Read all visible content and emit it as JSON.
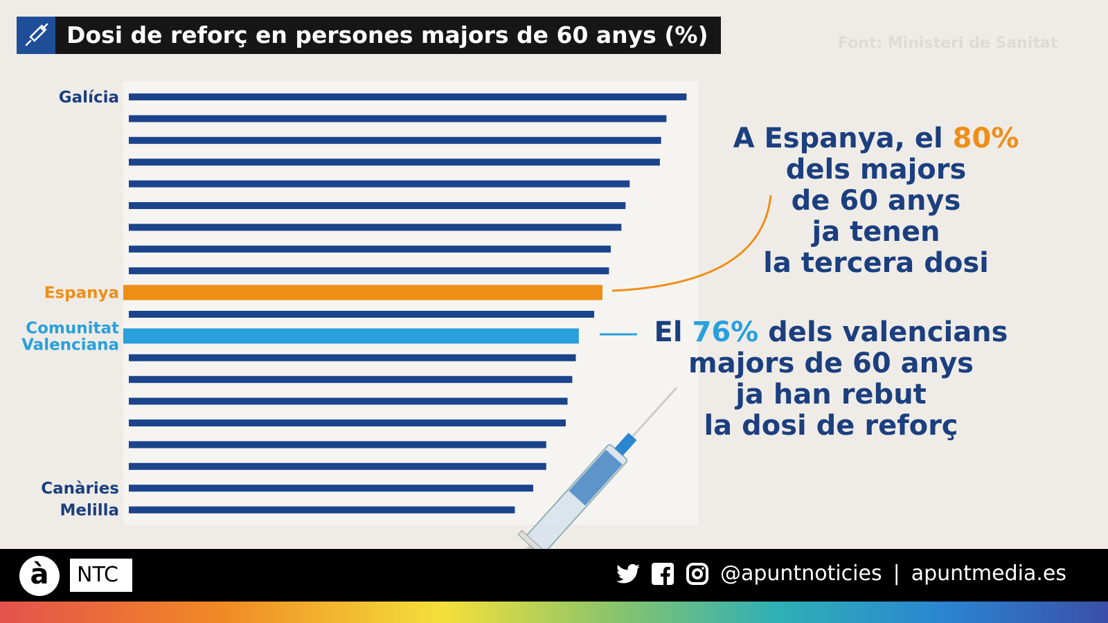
{
  "header": {
    "title": "Dosi de reforç en persones majors de 60 anys (%)",
    "icon": "syringe-icon",
    "source": "Font: Ministeri de Sanitat"
  },
  "colors": {
    "bar": "#1b448c",
    "espanya": "#ef8e17",
    "valenciana": "#29a0dc",
    "text": "#1b3f7f"
  },
  "chart_data": {
    "type": "bar",
    "orientation": "horizontal",
    "title": "Dosi de reforç en persones majors de 60 anys (%)",
    "categories": [
      "Galícia",
      "",
      "",
      "",
      "",
      "",
      "",
      "",
      "",
      "Espanya",
      "",
      "Comunitat Valenciana",
      "",
      "",
      "",
      "",
      "",
      "",
      "Canàries",
      "Melilla"
    ],
    "values": [
      94.2,
      90.8,
      89.9,
      89.7,
      84.6,
      83.9,
      83.2,
      81.4,
      81.1,
      80,
      78.6,
      76,
      75.5,
      74.9,
      74.1,
      73.8,
      70.5,
      70.5,
      68.3,
      65.2
    ],
    "highlight": {
      "Espanya": "#ef8e17",
      "Comunitat Valenciana": "#29a0dc"
    },
    "grid": false,
    "xlim": [
      0,
      100
    ]
  },
  "annotations": {
    "espanya": {
      "l1a": "A Espanya, el ",
      "l1b": "80%",
      "l2": "dels majors",
      "l3": "de 60 anys",
      "l4": "ja tenen",
      "l5": "la tercera dosi"
    },
    "valenciana": {
      "l1a": "El ",
      "l1b": "76%",
      "l1c": " dels valencians",
      "l2": "majors de 60 anys",
      "l3": "ja han rebut",
      "l4": "la dosi de reforç"
    }
  },
  "footer": {
    "logo_a": "à",
    "logo_ntc": "NTC",
    "handle": "@apuntnoticies",
    "separator": "|",
    "website": "apuntmedia.es"
  }
}
